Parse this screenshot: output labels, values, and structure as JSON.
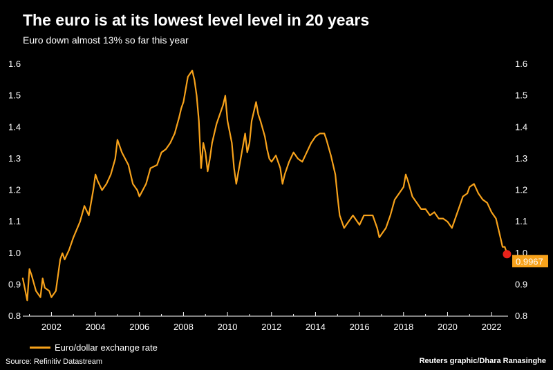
{
  "chart_data": {
    "type": "line",
    "title": "The euro is at its lowest level level in 20 years",
    "subtitle": "Euro down almost 13% so far this year",
    "xlabel": "",
    "ylabel": "",
    "xlim": [
      2000.7,
      2022.75
    ],
    "ylim": [
      0.8,
      1.6
    ],
    "x_ticks": [
      "2002",
      "2004",
      "2006",
      "2008",
      "2010",
      "2012",
      "2014",
      "2016",
      "2018",
      "2020",
      "2022"
    ],
    "y_ticks": [
      "0.8",
      "0.9",
      "1.0",
      "1.1",
      "1.2",
      "1.3",
      "1.4",
      "1.5",
      "1.6"
    ],
    "y_axis_both_sides": true,
    "grid": false,
    "legend_position": "bottom-left",
    "series": [
      {
        "name": "Euro/dollar exchange rate",
        "color": "#f7a21b",
        "x": [
          2000.7,
          2000.9,
          2001.0,
          2001.1,
          2001.3,
          2001.5,
          2001.6,
          2001.7,
          2001.9,
          2002.0,
          2002.2,
          2002.4,
          2002.5,
          2002.6,
          2002.8,
          2003.0,
          2003.3,
          2003.5,
          2003.7,
          2003.9,
          2004.0,
          2004.1,
          2004.3,
          2004.5,
          2004.7,
          2004.9,
          2005.0,
          2005.2,
          2005.5,
          2005.7,
          2005.9,
          2006.0,
          2006.3,
          2006.5,
          2006.8,
          2007.0,
          2007.2,
          2007.4,
          2007.6,
          2007.8,
          2007.9,
          2008.0,
          2008.2,
          2008.4,
          2008.5,
          2008.6,
          2008.7,
          2008.8,
          2008.9,
          2009.0,
          2009.1,
          2009.2,
          2009.3,
          2009.4,
          2009.5,
          2009.6,
          2009.8,
          2009.9,
          2010.0,
          2010.2,
          2010.3,
          2010.4,
          2010.5,
          2010.6,
          2010.8,
          2010.9,
          2011.0,
          2011.1,
          2011.3,
          2011.4,
          2011.5,
          2011.7,
          2011.8,
          2011.9,
          2012.0,
          2012.2,
          2012.4,
          2012.5,
          2012.6,
          2012.8,
          2013.0,
          2013.2,
          2013.4,
          2013.6,
          2013.8,
          2014.0,
          2014.2,
          2014.4,
          2014.5,
          2014.7,
          2014.9,
          2015.0,
          2015.1,
          2015.3,
          2015.5,
          2015.7,
          2016.0,
          2016.2,
          2016.4,
          2016.6,
          2016.8,
          2016.9,
          2017.0,
          2017.2,
          2017.4,
          2017.6,
          2017.8,
          2018.0,
          2018.1,
          2018.2,
          2018.4,
          2018.6,
          2018.8,
          2019.0,
          2019.2,
          2019.4,
          2019.6,
          2019.8,
          2020.0,
          2020.2,
          2020.3,
          2020.5,
          2020.7,
          2020.9,
          2021.0,
          2021.2,
          2021.4,
          2021.6,
          2021.8,
          2022.0,
          2022.2,
          2022.4,
          2022.5,
          2022.6,
          2022.7
        ],
        "values": [
          0.92,
          0.85,
          0.95,
          0.93,
          0.88,
          0.86,
          0.92,
          0.89,
          0.88,
          0.86,
          0.88,
          0.98,
          1.0,
          0.98,
          1.01,
          1.05,
          1.1,
          1.15,
          1.12,
          1.2,
          1.25,
          1.23,
          1.2,
          1.22,
          1.25,
          1.3,
          1.36,
          1.32,
          1.28,
          1.22,
          1.2,
          1.18,
          1.22,
          1.27,
          1.28,
          1.32,
          1.33,
          1.35,
          1.38,
          1.43,
          1.46,
          1.48,
          1.56,
          1.58,
          1.55,
          1.5,
          1.42,
          1.27,
          1.35,
          1.32,
          1.26,
          1.3,
          1.35,
          1.38,
          1.41,
          1.43,
          1.47,
          1.5,
          1.42,
          1.35,
          1.27,
          1.22,
          1.26,
          1.3,
          1.38,
          1.32,
          1.35,
          1.42,
          1.48,
          1.44,
          1.42,
          1.37,
          1.33,
          1.3,
          1.29,
          1.31,
          1.27,
          1.22,
          1.25,
          1.29,
          1.32,
          1.3,
          1.29,
          1.32,
          1.35,
          1.37,
          1.38,
          1.38,
          1.36,
          1.31,
          1.25,
          1.18,
          1.12,
          1.08,
          1.1,
          1.12,
          1.09,
          1.12,
          1.12,
          1.12,
          1.08,
          1.05,
          1.06,
          1.08,
          1.12,
          1.17,
          1.19,
          1.21,
          1.25,
          1.23,
          1.18,
          1.16,
          1.14,
          1.14,
          1.12,
          1.13,
          1.11,
          1.11,
          1.1,
          1.08,
          1.1,
          1.14,
          1.18,
          1.19,
          1.21,
          1.22,
          1.19,
          1.17,
          1.16,
          1.13,
          1.11,
          1.05,
          1.02,
          1.02,
          1.0
        ]
      }
    ],
    "end_marker": {
      "value": "0.9967",
      "color": "#e8221b"
    }
  },
  "legend": {
    "label": "Euro/dollar exchange rate"
  },
  "footer": {
    "source": "Source: Refinitiv Datastream",
    "credit": "Reuters graphic/Dhara Ranasinghe"
  },
  "colors": {
    "background": "#000000",
    "line": "#f7a21b",
    "marker": "#e8221b",
    "text": "#ffffff"
  }
}
